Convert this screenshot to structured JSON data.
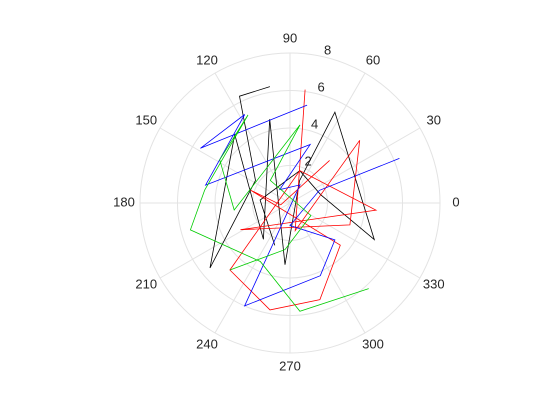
{
  "chart_data": {
    "type": "polar",
    "rlim": [
      0,
      8
    ],
    "rticks": [
      2,
      4,
      6,
      8
    ],
    "thetaticks": [
      0,
      30,
      60,
      90,
      120,
      150,
      180,
      210,
      240,
      270,
      300,
      330
    ],
    "grid": true,
    "series": [
      {
        "color": "#000000",
        "theta": [
          99.8,
          115.3,
          146.7,
          219.1,
          128.9,
          233.8,
          103.6,
          265.4,
          66.7,
          63.7,
          336.5,
          15,
          73.2,
          174.3,
          250.3
        ],
        "values": [
          6.3,
          6.3,
          2.2,
          5.5,
          4.7,
          2.4,
          4.6,
          3.3,
          1.3,
          5.4,
          4.9,
          1.7,
          1.8,
          1.6,
          2.4
        ]
      },
      {
        "color": "#ff0000",
        "theta": [
          82.4,
          280.6,
          42,
          339.9,
          208.3,
          355.3,
          73.2,
          228.1,
          259.4,
          287.2,
          320,
          162,
          191.3,
          47.1
        ],
        "values": [
          6.1,
          1.5,
          5.0,
          3.4,
          3.0,
          4.6,
          1.8,
          4.8,
          5.8,
          5.4,
          3.5,
          2.2,
          0.5,
          3.1
        ]
      },
      {
        "color": "#0000ff",
        "theta": [
          80.1,
          148.6,
          117.1,
          168,
          70.9,
          127.5,
          61.1,
          246.2,
          292.6,
          320.6,
          270,
          23.3,
          22.2
        ],
        "values": [
          5.3,
          5.6,
          5.3,
          4.6,
          3.3,
          0.9,
          1.1,
          6.0,
          4.2,
          3.1,
          1.2,
          1.7,
          6.3
        ]
      },
      {
        "color": "#00cc00",
        "theta": [
          312.6,
          275.2,
          243.1,
          195.1,
          171.3,
          115.5,
          148.4,
          187.2,
          82.7,
          131,
          329.1,
          263.9,
          228.1
        ],
        "values": [
          6.2,
          5.8,
          3.5,
          5.5,
          4.6,
          5.2,
          4.4,
          3.0,
          4.2,
          1.6,
          1.3,
          2.5,
          4.8
        ]
      }
    ]
  }
}
